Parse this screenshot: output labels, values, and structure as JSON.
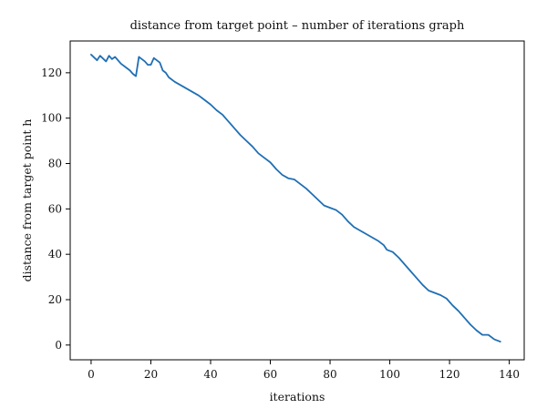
{
  "chart_data": {
    "type": "line",
    "title": "distance from target point – number of iterations graph",
    "xlabel": "iterations",
    "ylabel": "distance from target point h",
    "xlim": [
      -7,
      145
    ],
    "ylim": [
      -6.5,
      134
    ],
    "xticks": [
      0,
      20,
      40,
      60,
      80,
      100,
      120,
      140
    ],
    "yticks": [
      0,
      20,
      40,
      60,
      80,
      100,
      120
    ],
    "grid": false,
    "legend": "none",
    "series": [
      {
        "color": "#1f6fb4",
        "points": [
          [
            0,
            128
          ],
          [
            2,
            125.5
          ],
          [
            3,
            127.5
          ],
          [
            5,
            125
          ],
          [
            6,
            127.5
          ],
          [
            7,
            126
          ],
          [
            8,
            127
          ],
          [
            10,
            124
          ],
          [
            12,
            122
          ],
          [
            13,
            121
          ],
          [
            14,
            119.5
          ],
          [
            15,
            118.5
          ],
          [
            16,
            127
          ],
          [
            17,
            126
          ],
          [
            18,
            125
          ],
          [
            19,
            123.5
          ],
          [
            20,
            123.5
          ],
          [
            21,
            126.5
          ],
          [
            23,
            124.5
          ],
          [
            24,
            121
          ],
          [
            25,
            120
          ],
          [
            26,
            118
          ],
          [
            28,
            116
          ],
          [
            30,
            114.5
          ],
          [
            32,
            113
          ],
          [
            34,
            111.5
          ],
          [
            36,
            110
          ],
          [
            38,
            108
          ],
          [
            40,
            106
          ],
          [
            42,
            103.5
          ],
          [
            44,
            101.5
          ],
          [
            46,
            98.5
          ],
          [
            48,
            95.5
          ],
          [
            50,
            92.5
          ],
          [
            52,
            90
          ],
          [
            54,
            87.5
          ],
          [
            56,
            84.5
          ],
          [
            58,
            82.5
          ],
          [
            60,
            80.5
          ],
          [
            62,
            77.5
          ],
          [
            64,
            75
          ],
          [
            66,
            73.5
          ],
          [
            68,
            73
          ],
          [
            70,
            71
          ],
          [
            72,
            69
          ],
          [
            74,
            66.5
          ],
          [
            76,
            64
          ],
          [
            78,
            61.5
          ],
          [
            80,
            60.5
          ],
          [
            82,
            59.5
          ],
          [
            84,
            57.5
          ],
          [
            86,
            54.5
          ],
          [
            88,
            52
          ],
          [
            90,
            50.5
          ],
          [
            92,
            49
          ],
          [
            94,
            47.5
          ],
          [
            96,
            46
          ],
          [
            98,
            44
          ],
          [
            99,
            42
          ],
          [
            101,
            41
          ],
          [
            103,
            38.5
          ],
          [
            105,
            35.5
          ],
          [
            107,
            32.5
          ],
          [
            109,
            29.5
          ],
          [
            111,
            26.5
          ],
          [
            113,
            24
          ],
          [
            115,
            23
          ],
          [
            117,
            22
          ],
          [
            119,
            20.5
          ],
          [
            121,
            17.5
          ],
          [
            123,
            15
          ],
          [
            125,
            12
          ],
          [
            127,
            9
          ],
          [
            129,
            6.5
          ],
          [
            131,
            4.5
          ],
          [
            133,
            4.5
          ],
          [
            135,
            2.5
          ],
          [
            137,
            1.5
          ]
        ]
      }
    ]
  }
}
